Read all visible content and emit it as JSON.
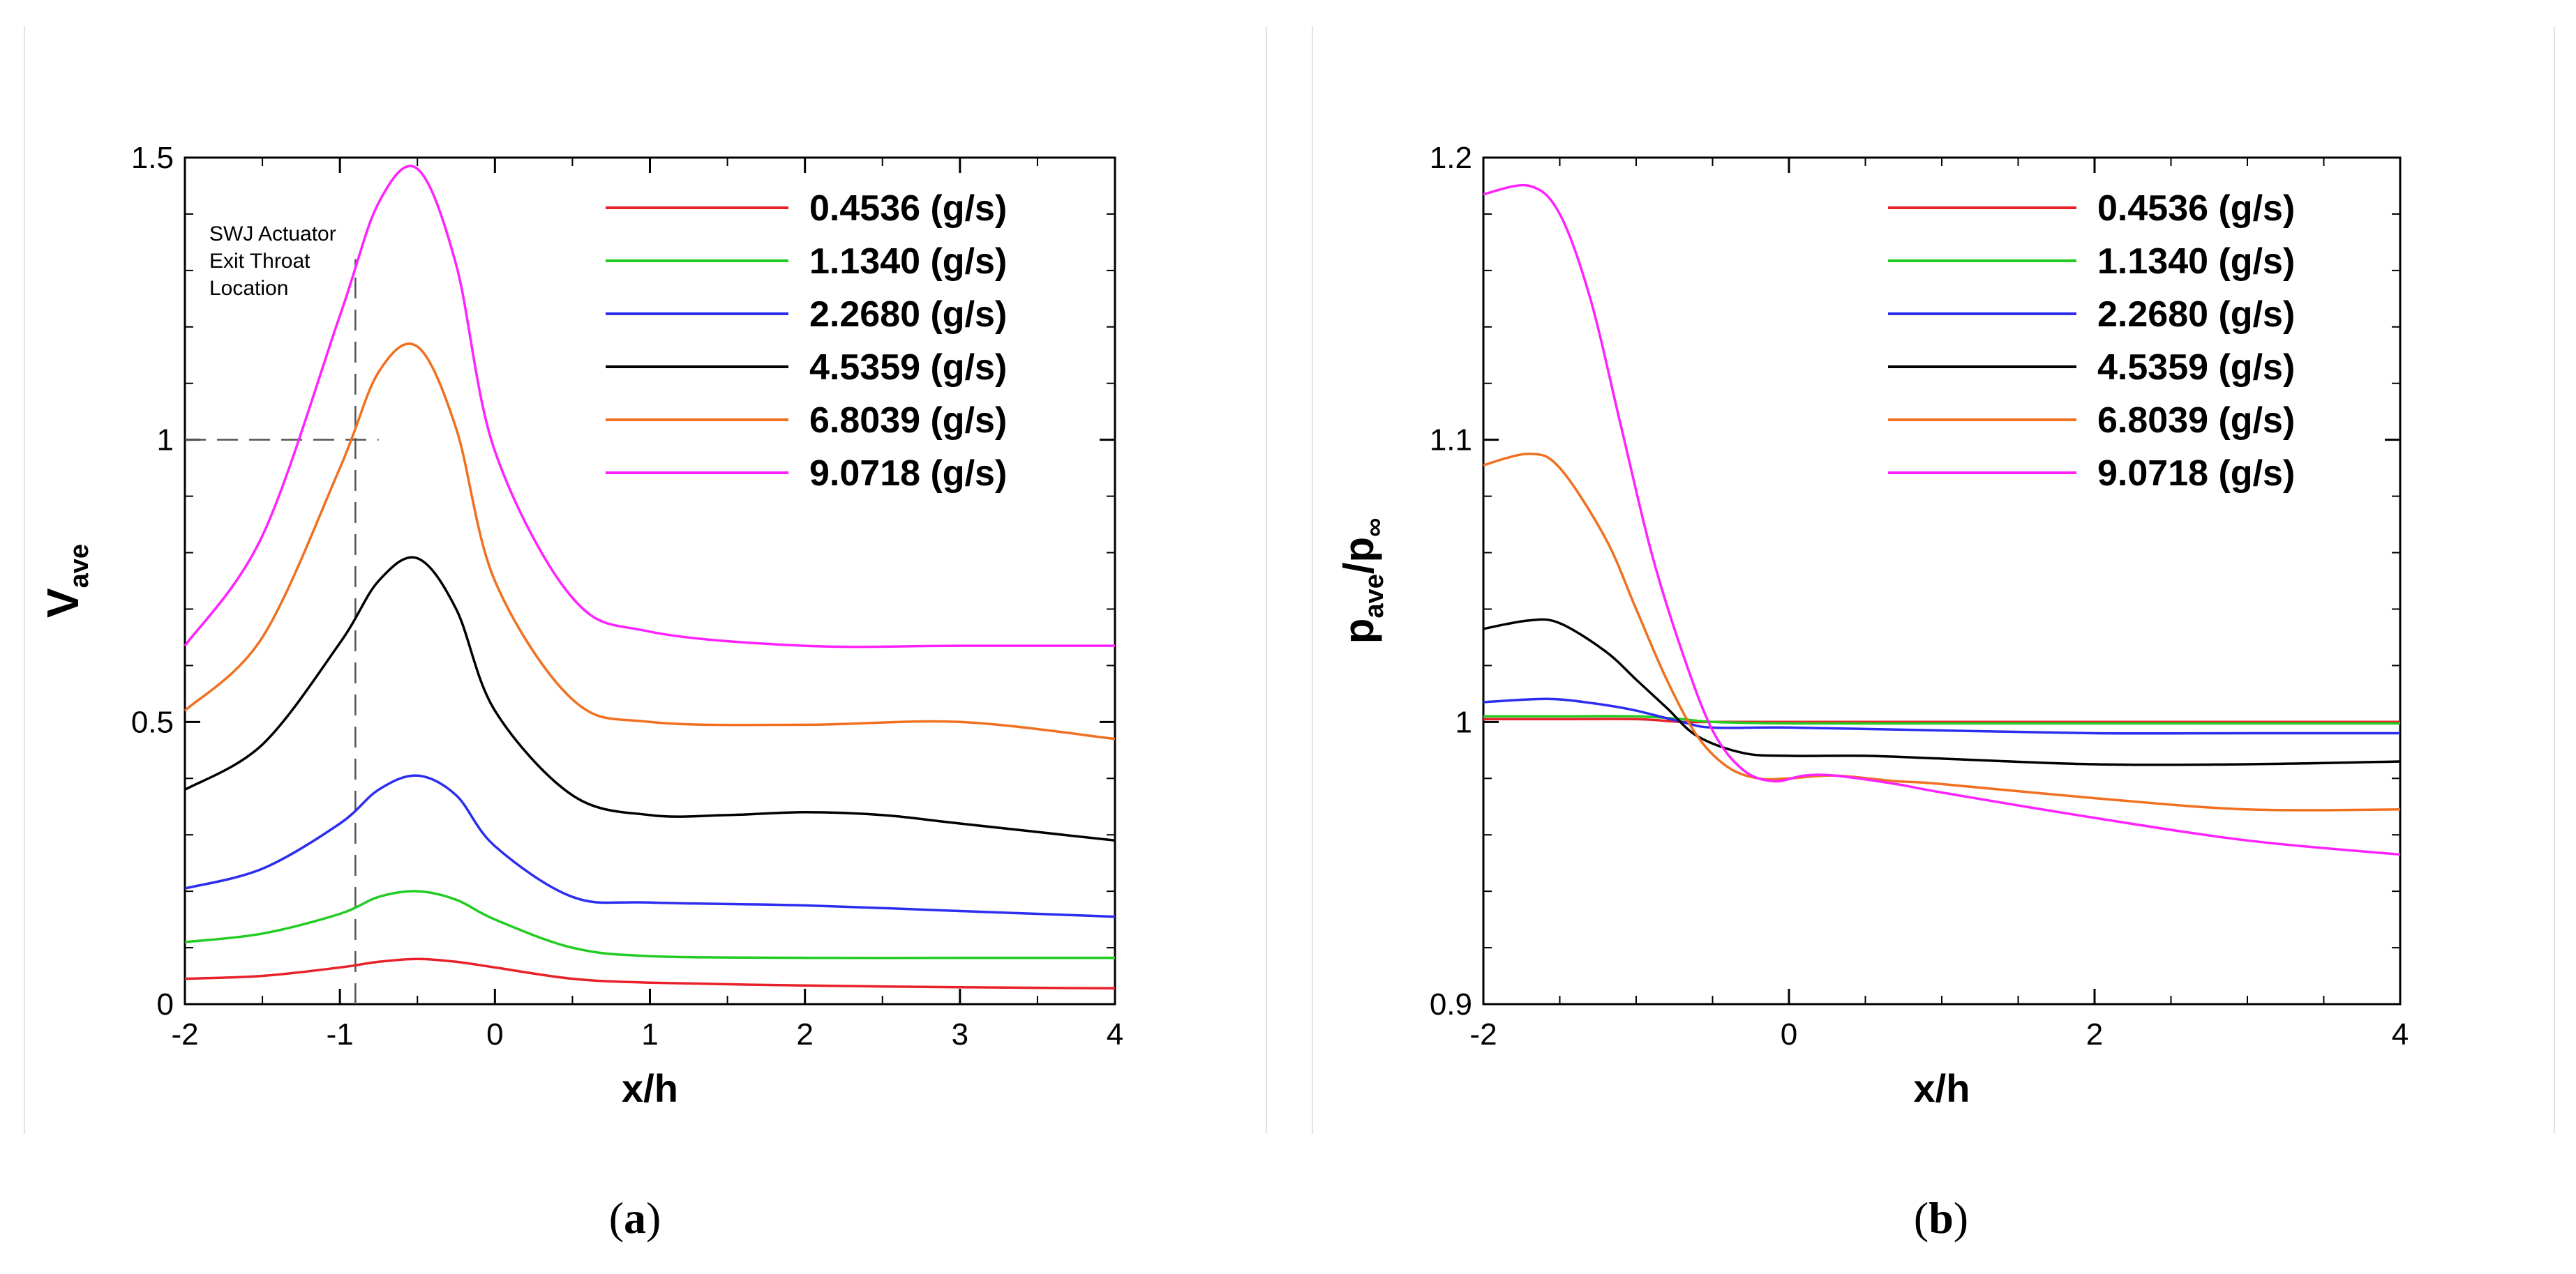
{
  "chart_data": [
    {
      "type": "line",
      "caption": "a",
      "xlabel": "x/h",
      "ylabel_main": "V",
      "ylabel_sub": "ave",
      "xlim": [
        -2,
        4
      ],
      "ylim": [
        0,
        1.5
      ],
      "xticks": [
        "-2",
        "-1",
        "0",
        "1",
        "2",
        "3",
        "4"
      ],
      "xtick_values": [
        -2,
        -1,
        0,
        1,
        2,
        3,
        4
      ],
      "yticks": [
        "0",
        "0.5",
        "1",
        "1.5"
      ],
      "ytick_values": [
        0,
        0.5,
        1,
        1.5
      ],
      "annotation": [
        "SWJ Actuator",
        "Exit Throat",
        "Location"
      ],
      "reference_lines": {
        "x": -0.9,
        "y": 1.0
      },
      "series": [
        {
          "name": "0.4536 (g/s)",
          "color": "#e8202a",
          "x": [
            -2,
            -1.5,
            -1,
            -0.75,
            -0.5,
            -0.25,
            0,
            0.5,
            1,
            2,
            3,
            4
          ],
          "y": [
            0.045,
            0.05,
            0.065,
            0.075,
            0.08,
            0.075,
            0.065,
            0.045,
            0.038,
            0.033,
            0.03,
            0.028
          ]
        },
        {
          "name": "1.1340 (g/s)",
          "color": "#22cc22",
          "x": [
            -2,
            -1.5,
            -1,
            -0.75,
            -0.5,
            -0.25,
            0,
            0.5,
            1,
            2,
            3,
            4
          ],
          "y": [
            0.11,
            0.125,
            0.16,
            0.19,
            0.2,
            0.185,
            0.15,
            0.1,
            0.085,
            0.082,
            0.082,
            0.082
          ]
        },
        {
          "name": "2.2680 (g/s)",
          "color": "#2d2df0",
          "x": [
            -2,
            -1.5,
            -1,
            -0.75,
            -0.5,
            -0.25,
            0,
            0.5,
            1,
            2,
            3,
            4
          ],
          "y": [
            0.205,
            0.24,
            0.32,
            0.38,
            0.405,
            0.37,
            0.28,
            0.19,
            0.18,
            0.175,
            0.165,
            0.155
          ]
        },
        {
          "name": "4.5359 (g/s)",
          "color": "#000000",
          "x": [
            -2,
            -1.5,
            -1,
            -0.75,
            -0.5,
            -0.25,
            0,
            0.5,
            1,
            1.5,
            2,
            2.5,
            3,
            4
          ],
          "y": [
            0.38,
            0.46,
            0.64,
            0.75,
            0.79,
            0.7,
            0.52,
            0.37,
            0.335,
            0.335,
            0.34,
            0.335,
            0.32,
            0.29
          ]
        },
        {
          "name": "6.8039 (g/s)",
          "color": "#f07020",
          "x": [
            -2,
            -1.5,
            -1,
            -0.75,
            -0.5,
            -0.25,
            0,
            0.5,
            1,
            2,
            3,
            4
          ],
          "y": [
            0.52,
            0.65,
            0.95,
            1.12,
            1.165,
            1.02,
            0.75,
            0.54,
            0.5,
            0.495,
            0.5,
            0.47
          ]
        },
        {
          "name": "9.0718 (g/s)",
          "color": "#ff22ff",
          "x": [
            -2,
            -1.5,
            -1,
            -0.75,
            -0.5,
            -0.25,
            0,
            0.5,
            1,
            2,
            3,
            4
          ],
          "y": [
            0.635,
            0.83,
            1.22,
            1.42,
            1.48,
            1.31,
            0.98,
            0.72,
            0.66,
            0.635,
            0.635,
            0.635
          ]
        }
      ]
    },
    {
      "type": "line",
      "caption": "b",
      "xlabel": "x/h",
      "ylabel_main": "p",
      "ylabel_sub1": "ave",
      "ylabel_mid": "/p",
      "ylabel_sub2": "∞",
      "xlim": [
        -2,
        4
      ],
      "ylim": [
        0.9,
        1.2
      ],
      "xticks": [
        "-2",
        "0",
        "2",
        "4"
      ],
      "xtick_values": [
        -2,
        0,
        2,
        4
      ],
      "yticks": [
        "0.9",
        "1",
        "1.1",
        "1.2"
      ],
      "ytick_values": [
        0.9,
        1.0,
        1.1,
        1.2
      ],
      "series": [
        {
          "name": "0.4536 (g/s)",
          "color": "#e8202a",
          "x": [
            -2,
            -1.5,
            -1,
            -0.7,
            -0.5,
            0,
            1,
            2,
            3,
            4
          ],
          "y": [
            1.001,
            1.001,
            1.001,
            1.0,
            1.0,
            1.0,
            1.0,
            1.0,
            1.0,
            1.0
          ]
        },
        {
          "name": "1.1340 (g/s)",
          "color": "#22cc22",
          "x": [
            -2,
            -1.5,
            -1,
            -0.7,
            -0.5,
            0,
            1,
            2,
            3,
            4
          ],
          "y": [
            1.002,
            1.002,
            1.002,
            1.001,
            1.0,
            0.9995,
            0.9995,
            0.9995,
            0.9995,
            0.9995
          ]
        },
        {
          "name": "2.2680 (g/s)",
          "color": "#2d2df0",
          "x": [
            -2,
            -1.7,
            -1.5,
            -1.2,
            -1,
            -0.7,
            -0.5,
            0,
            1,
            2,
            3,
            4
          ],
          "y": [
            1.007,
            1.008,
            1.008,
            1.006,
            1.004,
            1.0,
            0.998,
            0.998,
            0.997,
            0.996,
            0.996,
            0.996
          ]
        },
        {
          "name": "4.5359 (g/s)",
          "color": "#000000",
          "x": [
            -2,
            -1.7,
            -1.5,
            -1.2,
            -1,
            -0.8,
            -0.6,
            -0.3,
            0,
            0.5,
            1,
            2,
            3,
            4
          ],
          "y": [
            1.033,
            1.036,
            1.035,
            1.025,
            1.015,
            1.005,
            0.995,
            0.989,
            0.988,
            0.988,
            0.987,
            0.985,
            0.985,
            0.986
          ]
        },
        {
          "name": "6.8039 (g/s)",
          "color": "#f07020",
          "x": [
            -2,
            -1.7,
            -1.5,
            -1.2,
            -1,
            -0.8,
            -0.6,
            -0.4,
            -0.2,
            0,
            0.3,
            0.7,
            1,
            2,
            3,
            4
          ],
          "y": [
            1.091,
            1.095,
            1.09,
            1.065,
            1.04,
            1.015,
            0.995,
            0.984,
            0.98,
            0.98,
            0.981,
            0.979,
            0.978,
            0.973,
            0.969,
            0.969
          ]
        },
        {
          "name": "9.0718 (g/s)",
          "color": "#ff22ff",
          "x": [
            -2,
            -1.7,
            -1.5,
            -1.3,
            -1.1,
            -0.9,
            -0.7,
            -0.5,
            -0.3,
            -0.1,
            0.1,
            0.3,
            0.7,
            1,
            2,
            3,
            4
          ],
          "y": [
            1.187,
            1.19,
            1.18,
            1.15,
            1.105,
            1.06,
            1.025,
            0.997,
            0.983,
            0.979,
            0.981,
            0.981,
            0.978,
            0.975,
            0.966,
            0.958,
            0.953
          ]
        }
      ]
    }
  ]
}
